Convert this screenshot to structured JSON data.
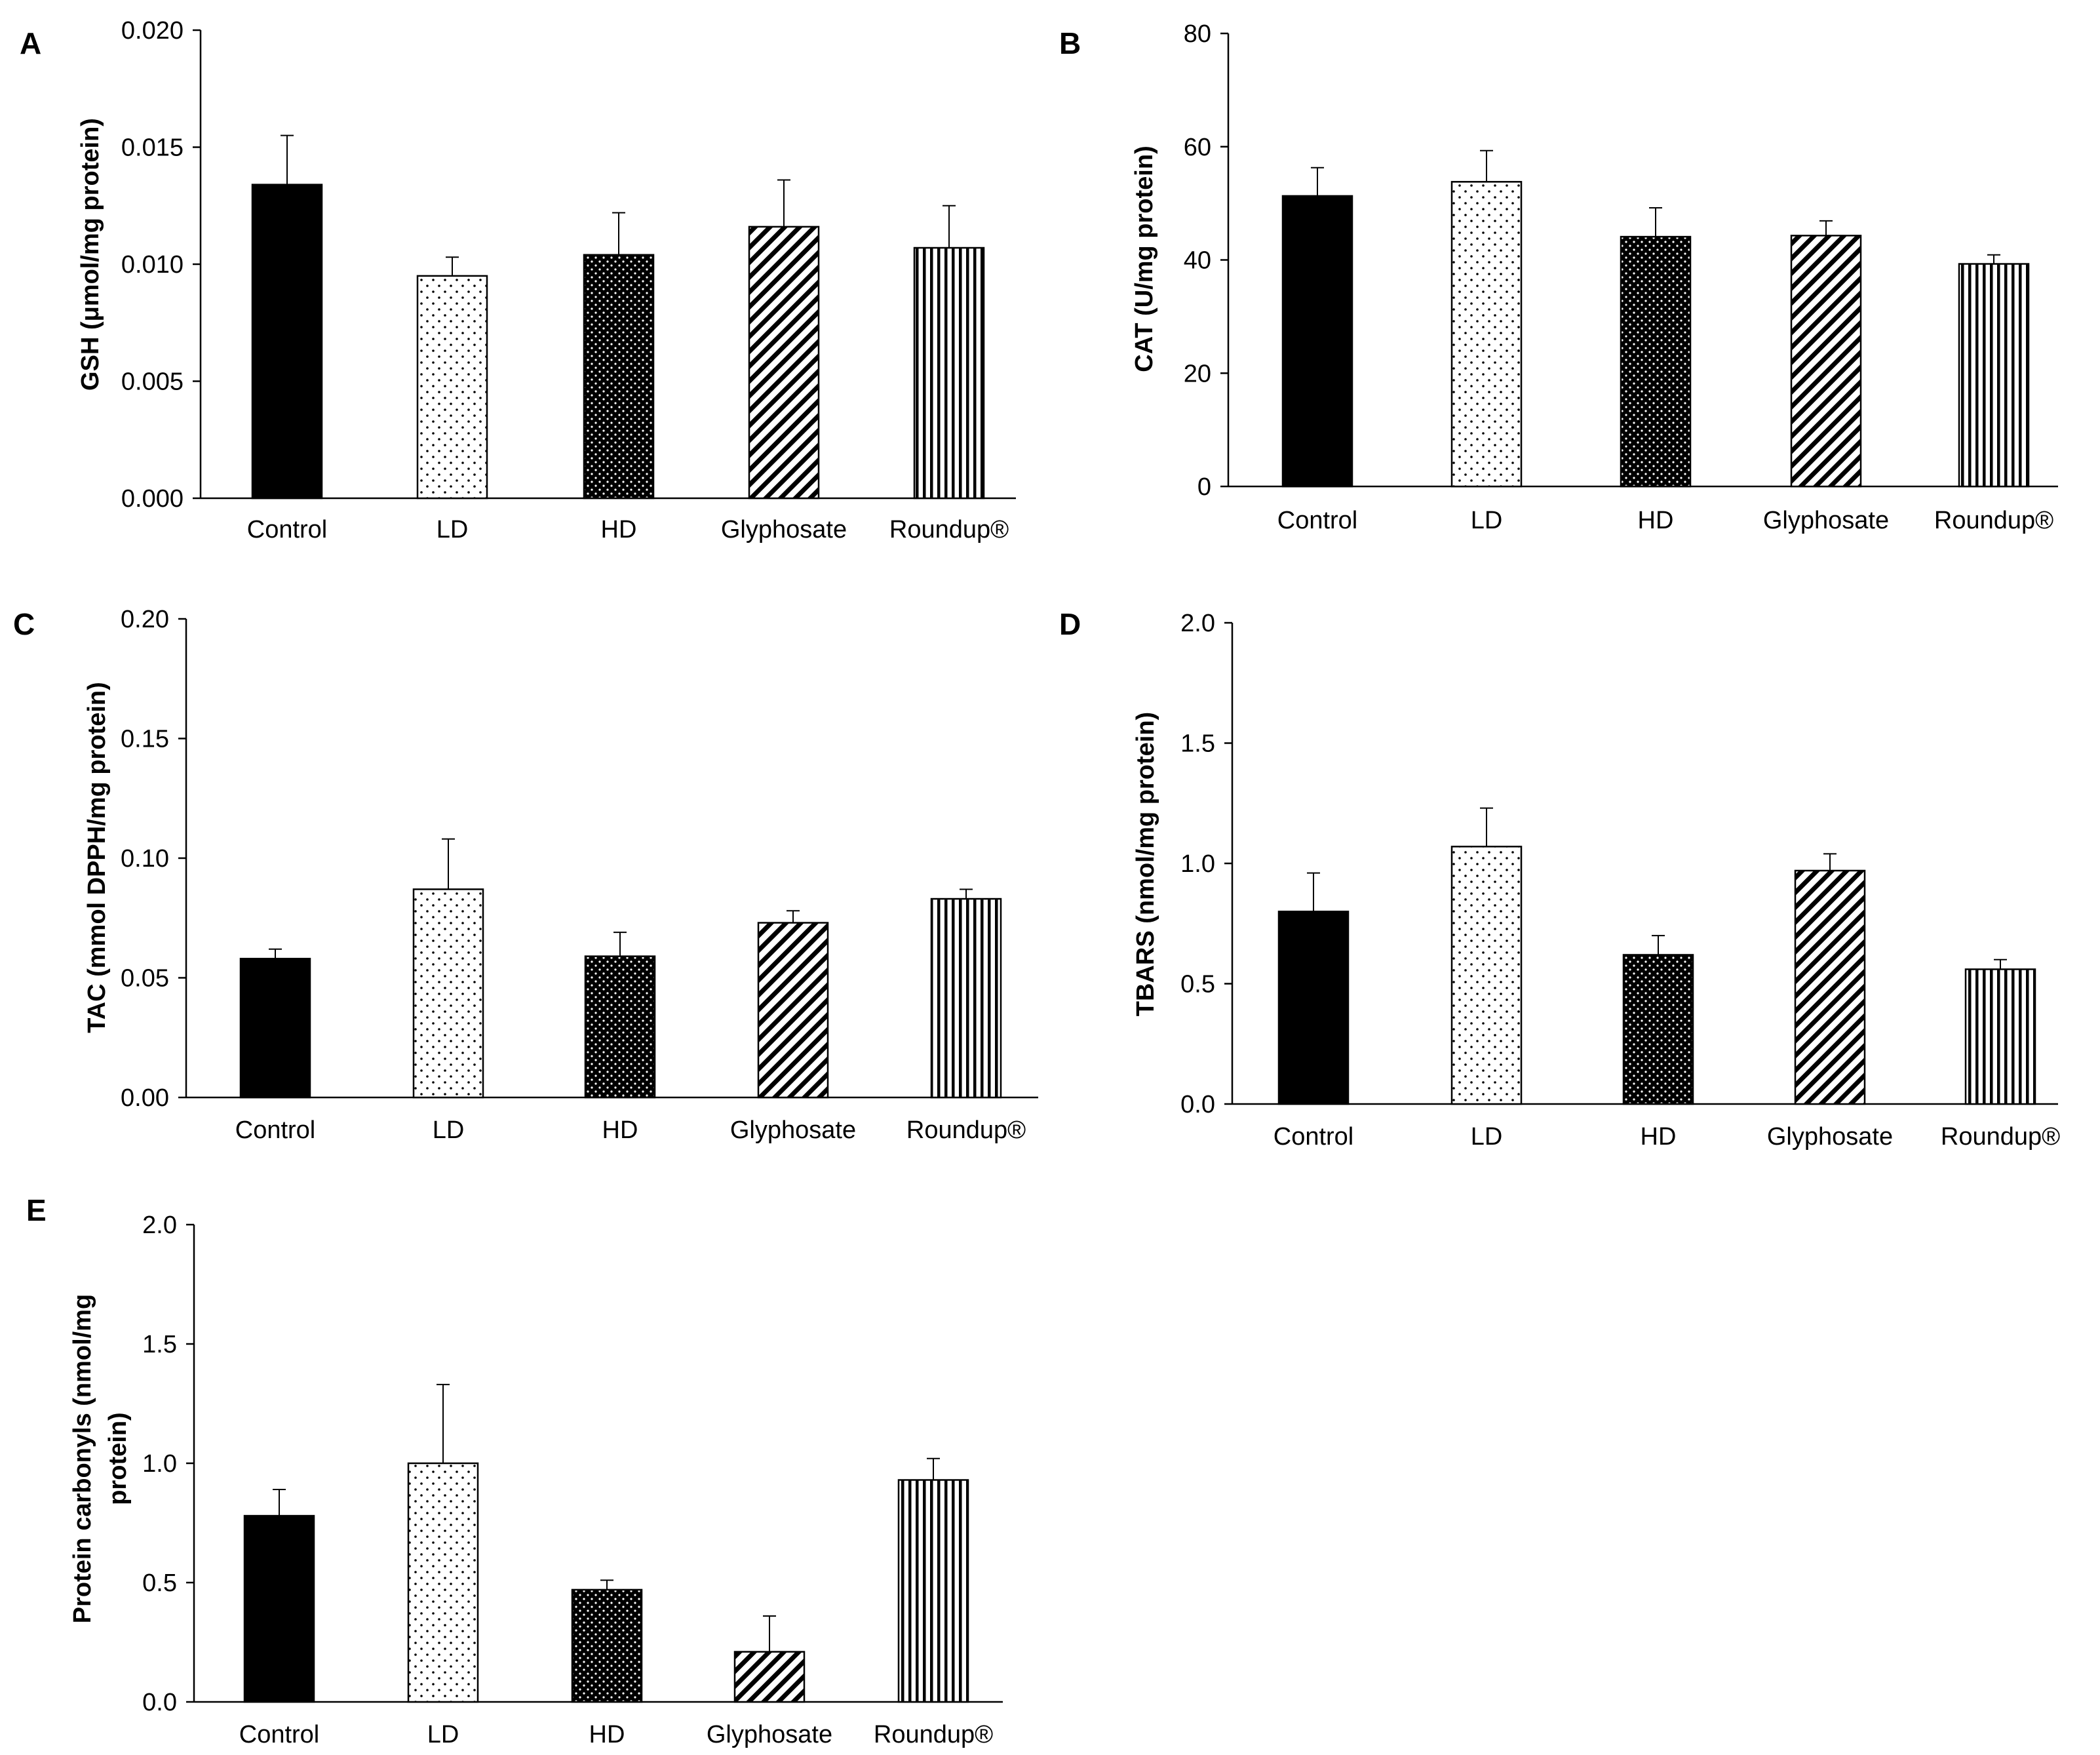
{
  "figure": {
    "categories": [
      "Control",
      "LD",
      "HD",
      "Glyphosate",
      "Roundup®"
    ],
    "patterns": [
      "solid-black",
      "sparse-dots",
      "dense-dots-dark",
      "diagonal-hatch",
      "vertical-lines"
    ]
  },
  "chart_data": [
    {
      "panel": "A",
      "type": "bar",
      "categories": [
        "Control",
        "LD",
        "HD",
        "Glyphosate",
        "Roundup®"
      ],
      "values": [
        0.0134,
        0.0095,
        0.0104,
        0.0116,
        0.0107
      ],
      "errors": [
        0.0021,
        0.0008,
        0.0018,
        0.002,
        0.0018
      ],
      "ylabel": "GSH  (μmol/mg  protein)",
      "ylim": [
        0,
        0.02
      ],
      "yticks": [
        0,
        0.005,
        0.01,
        0.015,
        0.02
      ],
      "ytick_labels": [
        "0.000",
        "0.005",
        "0.010",
        "0.015",
        "0.020"
      ]
    },
    {
      "panel": "B",
      "type": "bar",
      "categories": [
        "Control",
        "LD",
        "HD",
        "Glyphosate",
        "Roundup®"
      ],
      "values": [
        51.3,
        53.8,
        44.1,
        44.3,
        39.3
      ],
      "errors": [
        5.0,
        5.5,
        5.1,
        2.6,
        1.6
      ],
      "ylabel": "CAT (U/mg protein)",
      "ylim": [
        0,
        80
      ],
      "yticks": [
        0,
        20,
        40,
        60,
        80
      ],
      "ytick_labels": [
        "0",
        "20",
        "40",
        "60",
        "80"
      ]
    },
    {
      "panel": "C",
      "type": "bar",
      "categories": [
        "Control",
        "LD",
        "HD",
        "Glyphosate",
        "Roundup®"
      ],
      "values": [
        0.058,
        0.087,
        0.059,
        0.073,
        0.083
      ],
      "errors": [
        0.004,
        0.021,
        0.01,
        0.005,
        0.004
      ],
      "ylabel": "TAC (mmol DPPH/mg protein)",
      "ylim": [
        0,
        0.2
      ],
      "yticks": [
        0,
        0.05,
        0.1,
        0.15,
        0.2
      ],
      "ytick_labels": [
        "0.00",
        "0.05",
        "0.10",
        "0.15",
        "0.20"
      ]
    },
    {
      "panel": "D",
      "type": "bar",
      "categories": [
        "Control",
        "LD",
        "HD",
        "Glyphosate",
        "Roundup®"
      ],
      "values": [
        0.8,
        1.07,
        0.62,
        0.97,
        0.56
      ],
      "errors": [
        0.16,
        0.16,
        0.08,
        0.07,
        0.04
      ],
      "ylabel": "TBARS (nmol/mg  protein)",
      "ylim": [
        0,
        2
      ],
      "yticks": [
        0,
        0.5,
        1,
        1.5,
        2
      ],
      "ytick_labels": [
        "0.0",
        "0.5",
        "1.0",
        "1.5",
        "2.0"
      ]
    },
    {
      "panel": "E",
      "type": "bar",
      "categories": [
        "Control",
        "LD",
        "HD",
        "Glyphosate",
        "Roundup®"
      ],
      "values": [
        0.78,
        1.0,
        0.47,
        0.21,
        0.93
      ],
      "errors": [
        0.11,
        0.33,
        0.04,
        0.15,
        0.09
      ],
      "ylabel": "Protein carbonyls (nmol/mg protein)",
      "ylabel_lines": [
        "Protein carbonyls (nmol/mg",
        "protein)"
      ],
      "ylim": [
        0,
        2
      ],
      "yticks": [
        0,
        0.5,
        1,
        1.5,
        2
      ],
      "ytick_labels": [
        "0.0",
        "0.5",
        "1.0",
        "1.5",
        "2.0"
      ]
    }
  ]
}
